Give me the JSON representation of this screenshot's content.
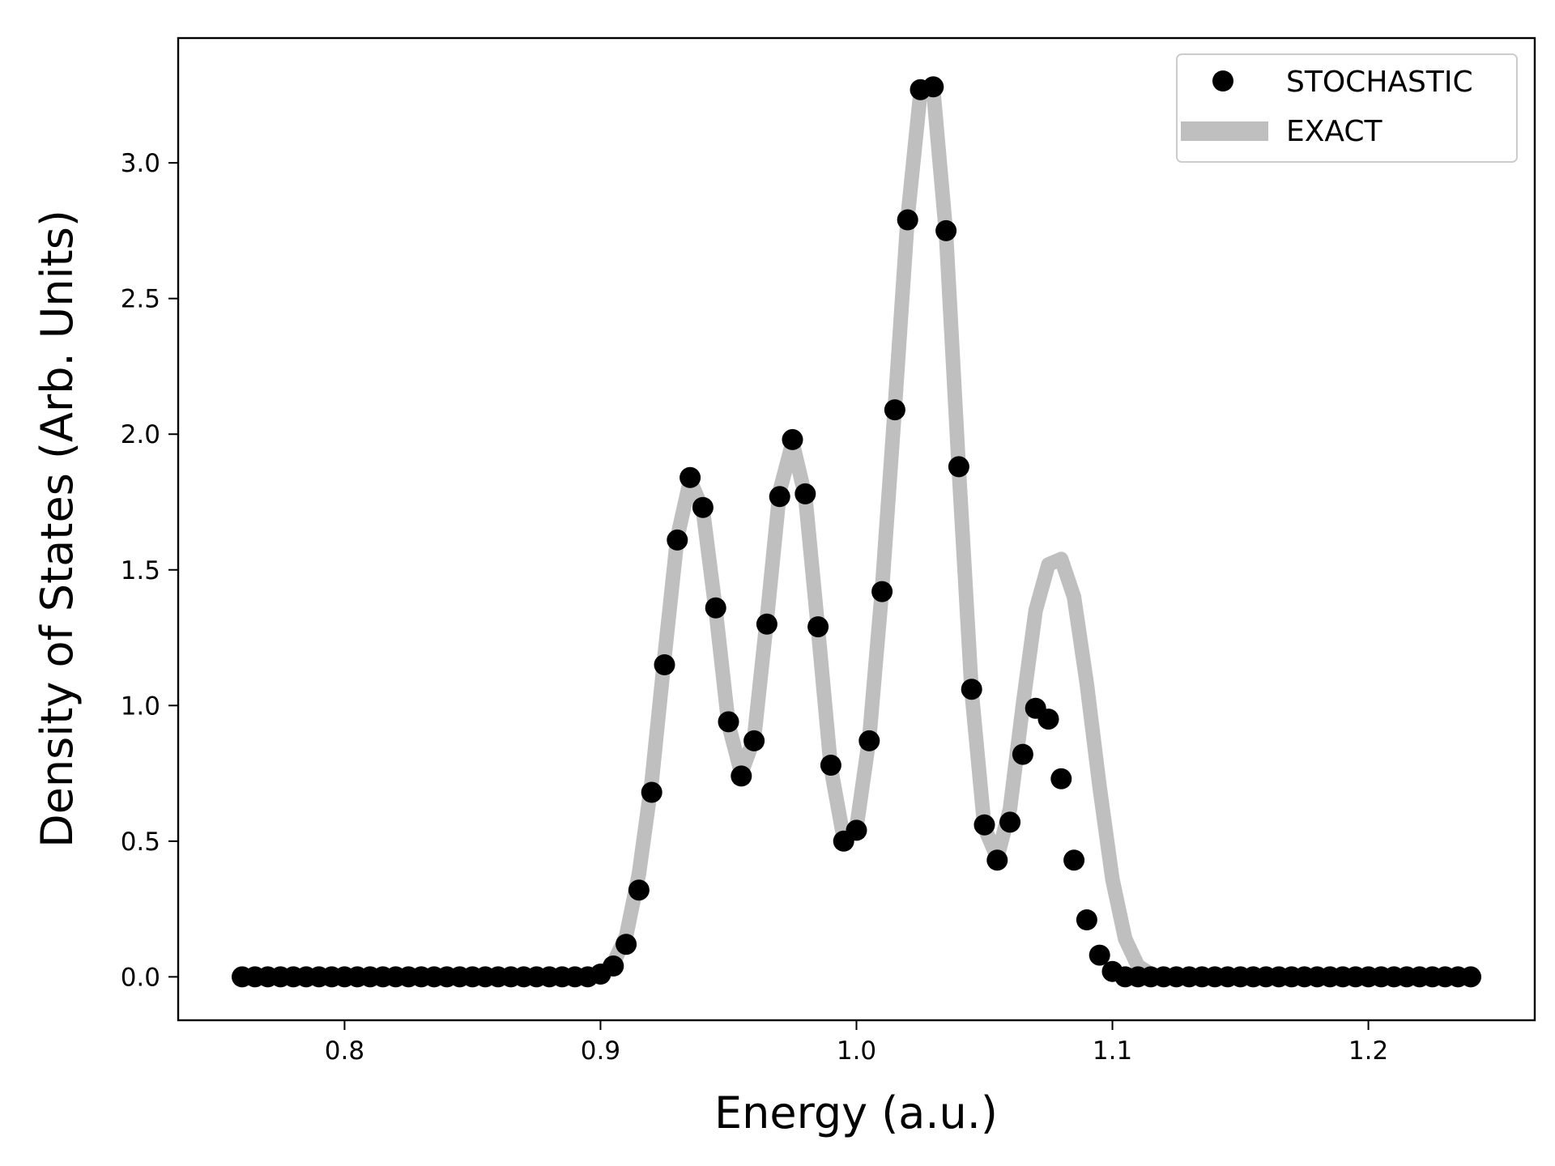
{
  "chart_data": {
    "type": "scatter",
    "xlabel": "Energy (a.u.)",
    "ylabel": "Density of States (Arb. Units)",
    "xlim": [
      0.735,
      1.265
    ],
    "ylim": [
      -0.16,
      3.46
    ],
    "xticks": [
      0.8,
      0.9,
      1.0,
      1.1,
      1.2
    ],
    "yticks": [
      0.0,
      0.5,
      1.0,
      1.5,
      2.0,
      2.5,
      3.0
    ],
    "xtick_labels": [
      "0.8",
      "0.9",
      "1.0",
      "1.1",
      "1.2"
    ],
    "ytick_labels": [
      "0.0",
      "0.5",
      "1.0",
      "1.5",
      "2.0",
      "2.5",
      "3.0"
    ],
    "grid": false,
    "legend_position": "top-right",
    "series": [
      {
        "name": "STOCHASTIC",
        "kind": "scatter",
        "color": "#000000",
        "x": [
          0.76,
          0.765,
          0.77,
          0.775,
          0.78,
          0.785,
          0.79,
          0.795,
          0.8,
          0.805,
          0.81,
          0.815,
          0.82,
          0.825,
          0.83,
          0.835,
          0.84,
          0.845,
          0.85,
          0.855,
          0.86,
          0.865,
          0.87,
          0.875,
          0.88,
          0.885,
          0.89,
          0.895,
          0.9,
          0.905,
          0.91,
          0.915,
          0.92,
          0.925,
          0.93,
          0.935,
          0.94,
          0.945,
          0.95,
          0.955,
          0.96,
          0.965,
          0.97,
          0.975,
          0.98,
          0.985,
          0.99,
          0.995,
          1.0,
          1.005,
          1.01,
          1.015,
          1.02,
          1.025,
          1.03,
          1.035,
          1.04,
          1.045,
          1.05,
          1.055,
          1.06,
          1.065,
          1.07,
          1.075,
          1.08,
          1.085,
          1.09,
          1.095,
          1.1,
          1.105,
          1.11,
          1.115,
          1.12,
          1.125,
          1.13,
          1.135,
          1.14,
          1.145,
          1.15,
          1.155,
          1.16,
          1.165,
          1.17,
          1.175,
          1.18,
          1.185,
          1.19,
          1.195,
          1.2,
          1.205,
          1.21,
          1.215,
          1.22,
          1.225,
          1.23,
          1.235,
          1.24
        ],
        "y": [
          0,
          0,
          0,
          0,
          0,
          0,
          0,
          0,
          0,
          0,
          0,
          0,
          0,
          0,
          0,
          0,
          0,
          0,
          0,
          0,
          0,
          0,
          0,
          0,
          0,
          0,
          0,
          0,
          0.01,
          0.04,
          0.12,
          0.32,
          0.68,
          1.15,
          1.61,
          1.84,
          1.73,
          1.36,
          0.94,
          0.74,
          0.87,
          1.3,
          1.77,
          1.98,
          1.78,
          1.29,
          0.78,
          0.5,
          0.54,
          0.87,
          1.42,
          2.09,
          2.79,
          3.27,
          3.28,
          2.75,
          1.88,
          1.06,
          0.56,
          0.43,
          0.57,
          0.82,
          0.99,
          0.95,
          0.73,
          0.43,
          0.21,
          0.08,
          0.02,
          0,
          0,
          0,
          0,
          0,
          0,
          0,
          0,
          0,
          0,
          0,
          0,
          0,
          0,
          0,
          0,
          0,
          0,
          0,
          0,
          0,
          0,
          0,
          0,
          0,
          0,
          0,
          0
        ]
      },
      {
        "name": "EXACT",
        "kind": "line",
        "color": "#bfbfbf",
        "x": [
          0.76,
          0.765,
          0.77,
          0.775,
          0.78,
          0.785,
          0.79,
          0.795,
          0.8,
          0.805,
          0.81,
          0.815,
          0.82,
          0.825,
          0.83,
          0.835,
          0.84,
          0.845,
          0.85,
          0.855,
          0.86,
          0.865,
          0.87,
          0.875,
          0.88,
          0.885,
          0.89,
          0.895,
          0.9,
          0.905,
          0.91,
          0.915,
          0.92,
          0.925,
          0.93,
          0.935,
          0.94,
          0.945,
          0.95,
          0.955,
          0.96,
          0.965,
          0.97,
          0.975,
          0.98,
          0.985,
          0.99,
          0.995,
          1.0,
          1.005,
          1.01,
          1.015,
          1.02,
          1.025,
          1.03,
          1.035,
          1.04,
          1.045,
          1.05,
          1.055,
          1.06,
          1.065,
          1.07,
          1.075,
          1.08,
          1.085,
          1.09,
          1.095,
          1.1,
          1.105,
          1.11,
          1.115,
          1.12,
          1.125,
          1.13,
          1.135,
          1.14,
          1.145,
          1.15,
          1.155,
          1.16,
          1.165,
          1.17,
          1.175,
          1.18,
          1.185,
          1.19,
          1.195,
          1.2,
          1.205,
          1.21,
          1.215,
          1.22,
          1.225,
          1.23,
          1.235,
          1.24
        ],
        "y": [
          0,
          0,
          0,
          0,
          0,
          0,
          0,
          0,
          0,
          0,
          0,
          0,
          0,
          0,
          0,
          0,
          0,
          0,
          0,
          0,
          0,
          0,
          0,
          0,
          0,
          0,
          0,
          0,
          0.01,
          0.05,
          0.15,
          0.38,
          0.72,
          1.18,
          1.62,
          1.83,
          1.72,
          1.35,
          0.93,
          0.75,
          0.88,
          1.32,
          1.79,
          1.97,
          1.77,
          1.28,
          0.77,
          0.51,
          0.55,
          0.88,
          1.43,
          2.1,
          2.8,
          3.26,
          3.27,
          2.74,
          1.87,
          1.05,
          0.55,
          0.44,
          0.62,
          1.0,
          1.35,
          1.52,
          1.54,
          1.4,
          1.08,
          0.7,
          0.36,
          0.14,
          0.04,
          0.01,
          0,
          0,
          0,
          0,
          0,
          0,
          0,
          0,
          0,
          0,
          0,
          0,
          0,
          0,
          0,
          0,
          0,
          0,
          0,
          0,
          0,
          0,
          0,
          0,
          0
        ]
      }
    ]
  }
}
